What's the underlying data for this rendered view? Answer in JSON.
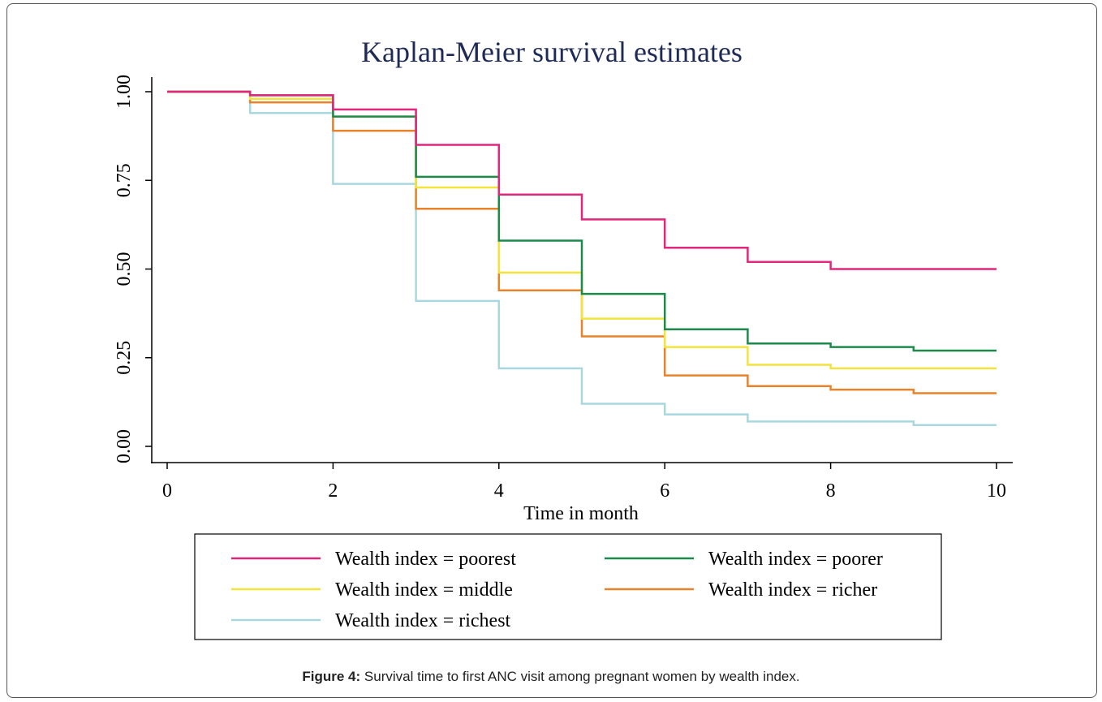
{
  "chart_data": {
    "type": "step",
    "title": "Kaplan-Meier survival estimates",
    "x_label": "Time in month",
    "x": [
      0,
      1,
      2,
      3,
      4,
      5,
      6,
      7,
      8,
      9,
      10
    ],
    "xlim": [
      0,
      10
    ],
    "xticks": [
      0,
      2,
      4,
      6,
      8,
      10
    ],
    "ylim": [
      0,
      1
    ],
    "yticks": [
      {
        "value": 0,
        "label": "0.00"
      },
      {
        "value": 0.25,
        "label": "0.25"
      },
      {
        "value": 0.5,
        "label": "0.50"
      },
      {
        "value": 0.75,
        "label": "0.75"
      },
      {
        "value": 1,
        "label": "1.00"
      }
    ],
    "grid": false,
    "series": [
      {
        "name": "Wealth index = richest",
        "color": "#a9d7df",
        "values": [
          1.0,
          0.94,
          0.74,
          0.41,
          0.22,
          0.12,
          0.09,
          0.07,
          0.07,
          0.06,
          0.06
        ]
      },
      {
        "name": "Wealth index = richer",
        "color": "#e8832a",
        "values": [
          1.0,
          0.97,
          0.89,
          0.67,
          0.44,
          0.31,
          0.2,
          0.17,
          0.16,
          0.15,
          0.15
        ]
      },
      {
        "name": "Wealth index = middle",
        "color": "#f3e43c",
        "values": [
          1.0,
          0.98,
          0.93,
          0.73,
          0.49,
          0.36,
          0.28,
          0.23,
          0.22,
          0.22,
          0.22
        ]
      },
      {
        "name": "Wealth index = poorer",
        "color": "#1b8a4b",
        "values": [
          1.0,
          0.99,
          0.93,
          0.76,
          0.58,
          0.43,
          0.33,
          0.29,
          0.28,
          0.27,
          0.27
        ]
      },
      {
        "name": "Wealth index = poorest",
        "color": "#e2267c",
        "values": [
          1.0,
          0.99,
          0.95,
          0.85,
          0.71,
          0.64,
          0.56,
          0.52,
          0.5,
          0.5,
          0.5
        ]
      }
    ],
    "legend_order": [
      4,
      3,
      2,
      1,
      0
    ]
  },
  "caption": {
    "label": "Figure 4:",
    "text": "Survival time to first ANC visit among pregnant women by wealth index."
  }
}
